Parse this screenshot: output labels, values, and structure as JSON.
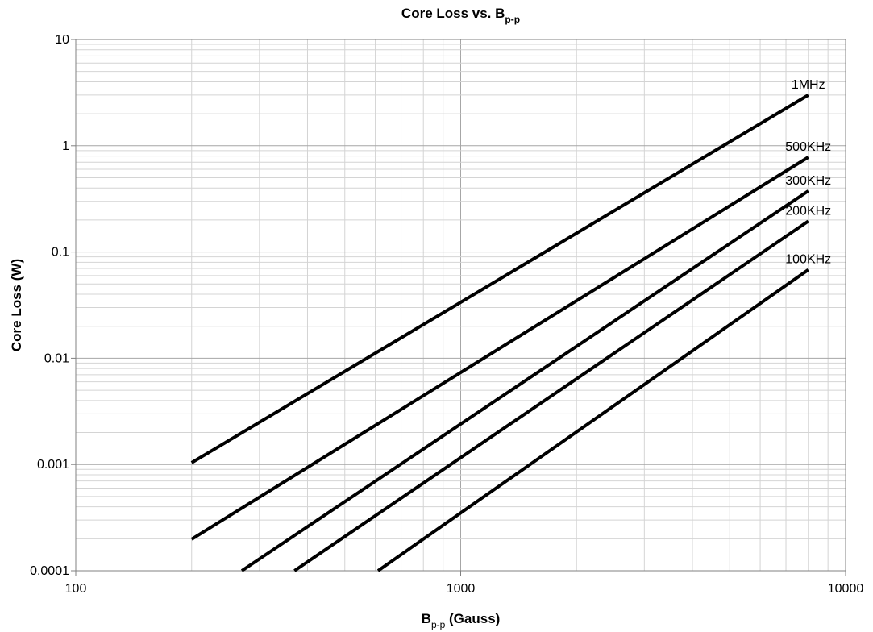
{
  "chart_data": {
    "type": "line",
    "title": "Core Loss vs. B",
    "title_subscript": "p-p",
    "xlabel": "B",
    "xlabel_subscript": "p-p",
    "xlabel_suffix": " (Gauss)",
    "ylabel": "Core Loss (W)",
    "x_scale": "log",
    "y_scale": "log",
    "xlim": [
      100,
      10000
    ],
    "ylim": [
      0.0001,
      10
    ],
    "x_ticks": [
      {
        "value": 100,
        "label": "100"
      },
      {
        "value": 1000,
        "label": "1000"
      },
      {
        "value": 10000,
        "label": "10000"
      }
    ],
    "y_ticks": [
      {
        "value": 10,
        "label": "10"
      },
      {
        "value": 1,
        "label": "1"
      },
      {
        "value": 0.1,
        "label": "0.1"
      },
      {
        "value": 0.01,
        "label": "0.01"
      },
      {
        "value": 0.001,
        "label": "0.001"
      },
      {
        "value": 0.0001,
        "label": "0.0001"
      }
    ],
    "grid": true,
    "line_color": "#000000",
    "grid_major_color": "#a6a6a6",
    "grid_minor_color": "#d4d4d4",
    "series": [
      {
        "name": "1MHz",
        "x": [
          200,
          8000
        ],
        "y": [
          0.00104,
          3.0
        ]
      },
      {
        "name": "500KHz",
        "x": [
          200,
          8000
        ],
        "y": [
          0.000198,
          0.78
        ]
      },
      {
        "name": "300KHz",
        "x": [
          270,
          8000
        ],
        "y": [
          0.0001,
          0.375
        ]
      },
      {
        "name": "200KHz",
        "x": [
          370,
          8000
        ],
        "y": [
          0.0001,
          0.195
        ]
      },
      {
        "name": "100KHz",
        "x": [
          610,
          8000
        ],
        "y": [
          0.0001,
          0.068
        ]
      }
    ]
  }
}
